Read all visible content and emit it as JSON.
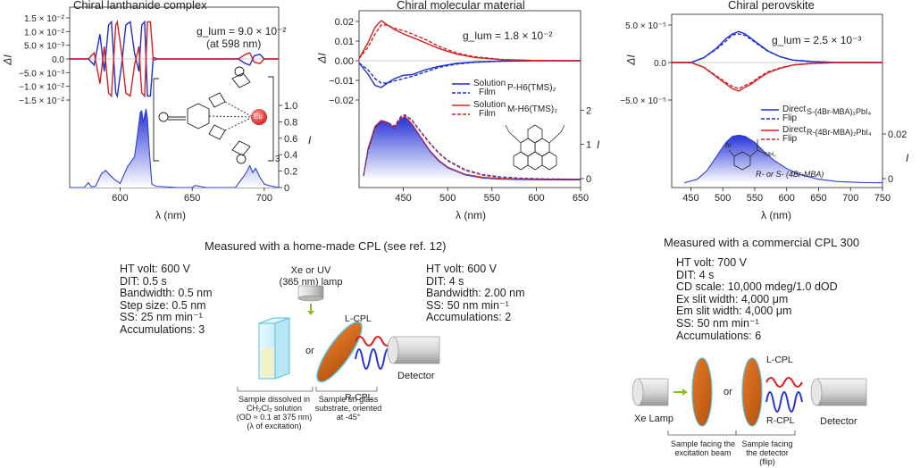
{
  "panel1": {
    "title": "Chiral lanthanide complex",
    "anno_value": "g_lum = 9.0 × 10⁻²",
    "anno_sub": "(at 598 nm)",
    "ylabel_top": "ΔI",
    "ylabel_bottom": "I",
    "xlabel": "λ (nm)",
    "yticks_top": [
      "1.5 × 10⁻²",
      "1.0 × 10⁻²",
      "5.0 × 10⁻³",
      "0.0",
      "−5.0 × 10⁻³",
      "−1.0 × 10⁻²",
      "−1.5 × 10⁻²"
    ],
    "yticks_bottom": [
      "1.0",
      "0.8",
      "0.6",
      "0.4",
      "0.2",
      "0"
    ],
    "xticks": [
      "600",
      "650",
      "700"
    ],
    "structure_label": "Eu",
    "structure_subscript": "3"
  },
  "panel2": {
    "title": "Chiral molecular material",
    "anno_value": "g_lum = 1.8 × 10⁻²",
    "ylabel_top": "ΔI",
    "ylabel_bottom": "I",
    "xlabel": "λ (nm)",
    "yticks_top": [
      "0.02",
      "0.01",
      "0.00",
      "−0.01",
      "−0.02"
    ],
    "yticks_bottom": [
      "2",
      "1",
      "0"
    ],
    "xticks": [
      "450",
      "500",
      "550",
      "600",
      "650"
    ],
    "legend": [
      {
        "label": "Solution",
        "color": "#1f2fd0",
        "dash": false
      },
      {
        "label": "Film",
        "color": "#1f2fd0",
        "dash": true
      },
      {
        "label": "Solution",
        "color": "#d62020",
        "dash": false
      },
      {
        "label": "Film",
        "color": "#d62020",
        "dash": true
      }
    ],
    "legend_groups": [
      "P-H6(TMS)₂",
      "M-H6(TMS)₂"
    ]
  },
  "panel3": {
    "title": "Chiral perovskite",
    "anno_value": "g_lum = 2.5 × 10⁻³",
    "ylabel_top": "ΔI",
    "ylabel_bottom": "I",
    "xlabel": "λ (nm)",
    "yticks_top": [
      "5.0 × 10⁻⁵",
      "0.0",
      "−5.0 × 10⁻⁵"
    ],
    "yticks_bottom": [
      "0.02",
      "0"
    ],
    "xticks": [
      "450",
      "500",
      "550",
      "600",
      "650",
      "700",
      "750"
    ],
    "legend": [
      {
        "label": "Direct",
        "color": "#1f2fd0",
        "dash": false
      },
      {
        "label": "Flip",
        "color": "#1f2fd0",
        "dash": true
      },
      {
        "label": "Direct",
        "color": "#d62020",
        "dash": false
      },
      {
        "label": "Flip",
        "color": "#d62020",
        "dash": true
      }
    ],
    "legend_groups": [
      "S-(4Br-MBA)₂PbI₄",
      "R-(4Br-MBA)₂PbI₄"
    ],
    "structure_label": "R- or S- (4Br-MBA)",
    "structure_atoms": [
      "Br",
      "NH₂"
    ]
  },
  "setup_left": {
    "caption": "Measured with a home-made CPL (see ref. 12)",
    "params_left": [
      "HT volt: 600 V",
      "DIT: 0.5 s",
      "Bandwidth: 0.5 nm",
      "Step size: 0.5 nm",
      "SS: 25 nm min⁻¹",
      "Accumulations: 3"
    ],
    "params_right": [
      "HT volt: 600 V",
      "DIT: 4 s",
      "Bandwidth: 2.00 nm",
      "SS: 50 nm min⁻¹",
      "Accumulations: 2"
    ],
    "lamp_label": [
      "Xe or UV",
      "(365 nm) lamp"
    ],
    "or_label": "or",
    "lcpl_label": "L-CPL",
    "rcpl_label": "R-CPL",
    "detector_label": "Detector",
    "note_solution": [
      "Sample dissolved in",
      "CH₂Cl₂ solution",
      "(OD ≈ 0.1 at 375 nm)",
      "(λ of excitation)"
    ],
    "note_glass": [
      "Sample on glass",
      "substrate, oriented",
      "at -45°"
    ]
  },
  "setup_right": {
    "caption": "Measured with a commercial CPL 300",
    "params": [
      "HT volt: 700 V",
      "DIT: 4 s",
      "CD scale: 10,000 mdeg/1.0 dOD",
      "Ex slit width: 4,000 μm",
      "Em slit width: 4,000 μm",
      "SS: 50 nm min⁻¹",
      "Accumulations: 6"
    ],
    "lamp_label": "Xe Lamp",
    "or_label": "or",
    "lcpl_label": "L-CPL",
    "rcpl_label": "R-CPL",
    "detector_label": "Detector",
    "note_facing_beam": [
      "Sample facing the",
      "excitation beam"
    ],
    "note_facing_detector": [
      "Sample facing",
      "the detector",
      "(flip)"
    ]
  },
  "colors": {
    "blue": "#1f2fd0",
    "red": "#d62020",
    "orange": "#d4681a",
    "fill_top": "#2433d6",
    "fill_bottom": "#ffffff"
  },
  "chart_data": [
    {
      "type": "line",
      "title": "Chiral lanthanide complex",
      "xlabel": "λ (nm)",
      "ylabel": "ΔI",
      "xlim": [
        565,
        710
      ],
      "ylim": [
        -0.015,
        0.015
      ],
      "series": [
        {
          "x": [
            565,
            578,
            582,
            586,
            589,
            592,
            594,
            597,
            598,
            601,
            604,
            607,
            610,
            613,
            615,
            617,
            619,
            621,
            623,
            626,
            640,
            660,
            682,
            687,
            690,
            693,
            697,
            700,
            710
          ],
          "y": [
            0,
            0,
            -0.002,
            0.008,
            -0.004,
            0.011,
            0.012,
            -0.011,
            -0.012,
            -0.002,
            0.011,
            0.012,
            0.002,
            -0.004,
            0.011,
            0.012,
            -0.012,
            -0.012,
            0.0005,
            0,
            0,
            0,
            0,
            -0.0015,
            -0.002,
            0.001,
            0.0015,
            0,
            0
          ]
        },
        {
          "x": [
            565,
            578,
            582,
            586,
            589,
            592,
            594,
            597,
            598,
            601,
            604,
            607,
            610,
            613,
            615,
            617,
            619,
            621,
            623,
            626,
            640,
            660,
            682,
            687,
            690,
            693,
            697,
            700,
            710
          ],
          "y": [
            0,
            0,
            0.002,
            -0.008,
            0.004,
            -0.011,
            -0.012,
            0.011,
            0.012,
            0.002,
            -0.011,
            -0.012,
            -0.002,
            0.004,
            -0.011,
            -0.012,
            0.012,
            0.012,
            -0.0005,
            0,
            0,
            0,
            0,
            0.0015,
            0.002,
            -0.001,
            -0.0015,
            0,
            0
          ]
        }
      ]
    },
    {
      "type": "area",
      "title": "Chiral lanthanide complex",
      "xlabel": "λ (nm)",
      "ylabel": "I",
      "xlim": [
        565,
        710
      ],
      "ylim": [
        0,
        1.2
      ],
      "series": [
        {
          "x": [
            565,
            575,
            578,
            580,
            583,
            587,
            590,
            593,
            596,
            600,
            605,
            610,
            612,
            614,
            615,
            616,
            617,
            618,
            619,
            620,
            622,
            625,
            640,
            650,
            652,
            660,
            680,
            687,
            690,
            692,
            694,
            697,
            700,
            703,
            710
          ],
          "y": [
            0,
            0,
            0.07,
            0.01,
            0.02,
            0.2,
            0.25,
            0.18,
            0.12,
            0.06,
            0.3,
            0.45,
            0.75,
            1.1,
            1.12,
            0.95,
            1.05,
            1.15,
            1.0,
            0.6,
            0.05,
            0.02,
            0,
            0,
            0.03,
            0,
            0,
            0.2,
            0.32,
            0.22,
            0.28,
            0.15,
            0.05,
            0.03,
            0
          ]
        }
      ]
    },
    {
      "type": "line",
      "title": "Chiral molecular material",
      "xlabel": "λ (nm)",
      "ylabel": "ΔI",
      "xlim": [
        400,
        650
      ],
      "ylim": [
        -0.02,
        0.02
      ],
      "series": [
        {
          "name": "Solution",
          "x": [
            400,
            410,
            418,
            425,
            432,
            440,
            450,
            460,
            475,
            490,
            510,
            530,
            560,
            600,
            650
          ],
          "y": [
            -0.001,
            -0.006,
            -0.011,
            -0.012,
            -0.01,
            -0.008,
            -0.0065,
            -0.0062,
            -0.004,
            -0.0025,
            -0.0012,
            -0.0006,
            -0.0002,
            0,
            0
          ]
        },
        {
          "name": "Film",
          "x": [
            400,
            410,
            418,
            425,
            432,
            440,
            450,
            460,
            475,
            490,
            510,
            530,
            560,
            600,
            650
          ],
          "y": [
            -0.001,
            -0.004,
            -0.008,
            -0.01,
            -0.01,
            -0.009,
            -0.008,
            -0.007,
            -0.005,
            -0.003,
            -0.0015,
            -0.0007,
            -0.0002,
            0,
            0
          ]
        },
        {
          "name": "Solution",
          "x": [
            400,
            410,
            418,
            425,
            432,
            440,
            450,
            460,
            475,
            490,
            510,
            530,
            560,
            600,
            650
          ],
          "y": [
            0.001,
            0.008,
            0.015,
            0.018,
            0.016,
            0.014,
            0.012,
            0.0105,
            0.008,
            0.0055,
            0.003,
            0.0015,
            0.0005,
            0.0001,
            0
          ]
        },
        {
          "name": "Film",
          "x": [
            400,
            410,
            418,
            425,
            432,
            440,
            450,
            460,
            475,
            490,
            510,
            530,
            560,
            600,
            650
          ],
          "y": [
            0.001,
            0.006,
            0.012,
            0.016,
            0.016,
            0.0145,
            0.0135,
            0.012,
            0.0095,
            0.0065,
            0.0035,
            0.0018,
            0.0006,
            0.0001,
            0
          ]
        }
      ]
    },
    {
      "type": "area",
      "title": "Chiral molecular material",
      "xlabel": "λ (nm)",
      "ylabel": "I",
      "xlim": [
        400,
        650
      ],
      "ylim": [
        -0.2,
        2.2
      ],
      "series": [
        {
          "name": "Solution",
          "x": [
            405,
            410,
            418,
            425,
            432,
            440,
            447,
            452,
            460,
            470,
            480,
            490,
            500,
            520,
            540,
            560,
            580,
            610,
            650
          ],
          "y": [
            0.1,
            0.8,
            1.4,
            1.55,
            1.5,
            1.35,
            1.6,
            1.65,
            1.45,
            1.1,
            0.75,
            0.5,
            0.32,
            0.13,
            0.05,
            0.02,
            0.01,
            0,
            0
          ]
        },
        {
          "name": "Film",
          "x": [
            405,
            410,
            418,
            425,
            432,
            440,
            447,
            452,
            460,
            470,
            480,
            490,
            500,
            520,
            540,
            560,
            580,
            610,
            650
          ],
          "y": [
            0.1,
            0.75,
            1.35,
            1.5,
            1.5,
            1.4,
            1.65,
            1.7,
            1.55,
            1.25,
            0.95,
            0.7,
            0.5,
            0.25,
            0.12,
            0.06,
            0.03,
            0.01,
            0
          ]
        }
      ]
    },
    {
      "type": "line",
      "title": "Chiral perovskite",
      "xlabel": "λ (nm)",
      "ylabel": "ΔI",
      "xlim": [
        420,
        750
      ],
      "ylim": [
        -9e-05,
        9e-05
      ],
      "series": [
        {
          "name": "Direct",
          "x": [
            420,
            450,
            470,
            490,
            505,
            515,
            525,
            535,
            545,
            555,
            570,
            590,
            610,
            640,
            680,
            750
          ],
          "y": [
            0,
            0,
            1e-05,
            3e-05,
            5e-05,
            6e-05,
            6.5e-05,
            6e-05,
            5e-05,
            4e-05,
            2.5e-05,
            1.2e-05,
            5e-06,
            2e-06,
            0,
            0
          ]
        },
        {
          "name": "Flip",
          "x": [
            420,
            450,
            470,
            490,
            505,
            515,
            525,
            535,
            545,
            555,
            570,
            590,
            610,
            640,
            680,
            750
          ],
          "y": [
            0,
            0,
            1e-05,
            2.8e-05,
            4.5e-05,
            5.8e-05,
            6e-05,
            5.7e-05,
            4.8e-05,
            3.8e-05,
            2.4e-05,
            1.2e-05,
            5e-06,
            2e-06,
            0,
            0
          ]
        },
        {
          "name": "Direct",
          "x": [
            420,
            450,
            470,
            490,
            505,
            515,
            525,
            535,
            545,
            555,
            570,
            590,
            610,
            640,
            680,
            750
          ],
          "y": [
            0,
            0,
            -1e-05,
            -3e-05,
            -4.5e-05,
            -5.5e-05,
            -6e-05,
            -5.2e-05,
            -4.5e-05,
            -3.5e-05,
            -2.2e-05,
            -1.2e-05,
            -5e-06,
            -2e-06,
            0,
            0
          ]
        },
        {
          "name": "Flip",
          "x": [
            420,
            450,
            470,
            490,
            505,
            515,
            525,
            535,
            545,
            555,
            570,
            590,
            610,
            640,
            680,
            750
          ],
          "y": [
            0,
            0,
            -1e-05,
            -2.8e-05,
            -4.2e-05,
            -5e-05,
            -5.5e-05,
            -4.8e-05,
            -4.2e-05,
            -3.2e-05,
            -2e-05,
            -1.1e-05,
            -5e-06,
            -2e-06,
            0,
            0
          ]
        }
      ]
    },
    {
      "type": "area",
      "title": "Chiral perovskite",
      "xlabel": "λ (nm)",
      "ylabel": "I",
      "xlim": [
        420,
        750
      ],
      "ylim": [
        -0.002,
        0.028
      ],
      "series": [
        {
          "name": "Direct",
          "x": [
            440,
            460,
            475,
            490,
            505,
            515,
            525,
            535,
            550,
            565,
            580,
            600,
            620,
            650,
            680,
            720,
            750
          ],
          "y": [
            0,
            0.0015,
            0.005,
            0.011,
            0.017,
            0.0195,
            0.02,
            0.0195,
            0.017,
            0.013,
            0.0095,
            0.006,
            0.0035,
            0.0015,
            0.0005,
            0.0001,
            0
          ]
        }
      ]
    }
  ]
}
